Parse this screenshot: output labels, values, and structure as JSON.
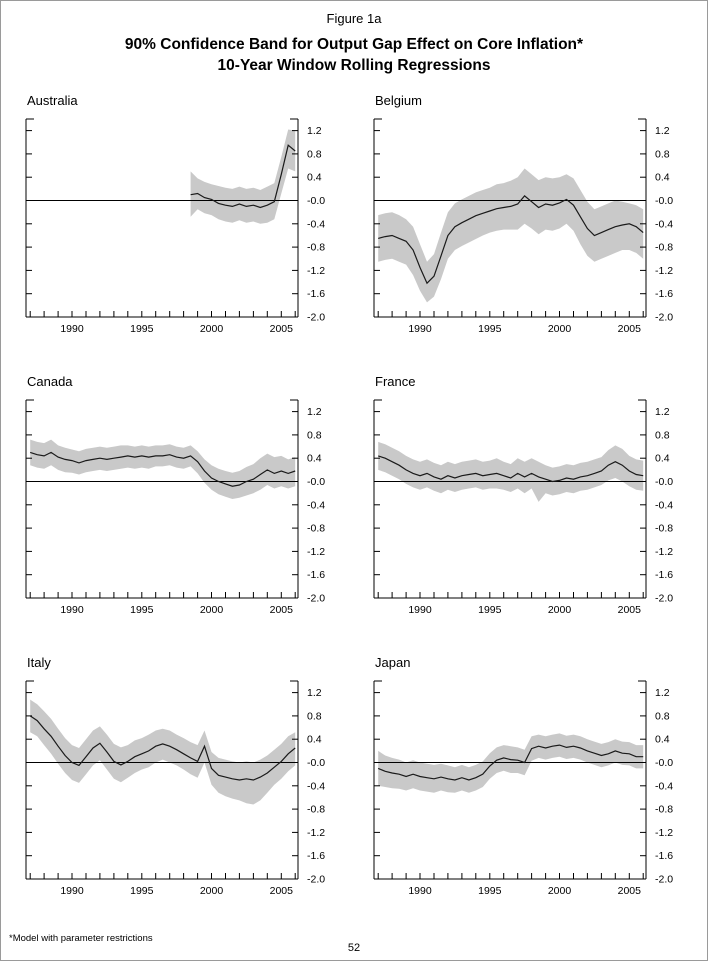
{
  "page": {
    "figure_label": "Figure 1a",
    "title_line1": "90% Confidence Band for Output Gap Effect on Core Inflation*",
    "title_line2": "10-Year Window Rolling Regressions",
    "footnote": "*Model with parameter restrictions",
    "page_number": "52"
  },
  "colors": {
    "band": "#c9c9c9",
    "line": "#1a1a1a",
    "frame": "#000000",
    "text": "#000000"
  },
  "axes": {
    "y_tick_labels": [
      "1.2",
      "0.8",
      "0.4",
      "-0.0",
      "-0.4",
      "-0.8",
      "-1.2",
      "-1.6",
      "-2.0"
    ],
    "y_tick_values": [
      1.2,
      0.8,
      0.4,
      0.0,
      -0.4,
      -0.8,
      -1.2,
      -1.6,
      -2.0
    ],
    "x_tick_labels": [
      "1990",
      "1995",
      "2000",
      "2005"
    ],
    "x_tick_values": [
      1990,
      1995,
      2000,
      2005
    ],
    "x_minor_start": 1987,
    "x_minor_end": 2006,
    "xlim": [
      1986.7,
      2006.2
    ],
    "ylim": [
      -2.0,
      1.4
    ]
  },
  "chart_data": [
    {
      "type": "line",
      "country": "Australia",
      "x_start": 1998.5,
      "x_step": 0.5,
      "estimate": [
        0.1,
        0.12,
        0.05,
        0.02,
        -0.05,
        -0.08,
        -0.1,
        -0.06,
        -0.1,
        -0.08,
        -0.12,
        -0.08,
        -0.02,
        0.45,
        0.95,
        0.85
      ],
      "band_upper": [
        0.5,
        0.38,
        0.32,
        0.28,
        0.25,
        0.22,
        0.2,
        0.24,
        0.2,
        0.22,
        0.18,
        0.24,
        0.3,
        0.75,
        1.22,
        1.2
      ],
      "band_lower": [
        -0.28,
        -0.15,
        -0.22,
        -0.25,
        -0.32,
        -0.36,
        -0.38,
        -0.34,
        -0.38,
        -0.36,
        -0.4,
        -0.38,
        -0.32,
        0.12,
        0.55,
        0.5
      ],
      "ylim": [
        -2.0,
        1.2
      ]
    },
    {
      "type": "line",
      "country": "Belgium",
      "x_start": 1987,
      "x_step": 0.5,
      "estimate": [
        -0.65,
        -0.62,
        -0.6,
        -0.65,
        -0.7,
        -0.85,
        -1.15,
        -1.42,
        -1.3,
        -0.95,
        -0.6,
        -0.45,
        -0.38,
        -0.32,
        -0.26,
        -0.22,
        -0.18,
        -0.14,
        -0.12,
        -0.1,
        -0.06,
        0.08,
        -0.02,
        -0.12,
        -0.06,
        -0.08,
        -0.04,
        0.02,
        -0.08,
        -0.28,
        -0.48,
        -0.6,
        -0.55,
        -0.5,
        -0.45,
        -0.42,
        -0.4,
        -0.45,
        -0.55
      ],
      "band_upper": [
        -0.25,
        -0.22,
        -0.2,
        -0.25,
        -0.32,
        -0.45,
        -0.75,
        -1.05,
        -0.92,
        -0.55,
        -0.2,
        -0.05,
        0.02,
        0.08,
        0.14,
        0.18,
        0.22,
        0.28,
        0.3,
        0.34,
        0.4,
        0.55,
        0.45,
        0.35,
        0.4,
        0.38,
        0.4,
        0.45,
        0.38,
        0.18,
        -0.02,
        -0.15,
        -0.1,
        -0.05,
        0.0,
        -0.02,
        -0.05,
        -0.08,
        -0.15
      ],
      "band_lower": [
        -1.05,
        -1.02,
        -1.0,
        -1.05,
        -1.1,
        -1.28,
        -1.55,
        -1.75,
        -1.65,
        -1.35,
        -1.0,
        -0.85,
        -0.78,
        -0.72,
        -0.66,
        -0.6,
        -0.55,
        -0.52,
        -0.5,
        -0.5,
        -0.5,
        -0.4,
        -0.48,
        -0.58,
        -0.5,
        -0.52,
        -0.48,
        -0.4,
        -0.52,
        -0.75,
        -0.95,
        -1.05,
        -1.0,
        -0.95,
        -0.9,
        -0.85,
        -0.85,
        -0.9,
        -1.0
      ],
      "ylim": [
        -2.0,
        1.2
      ]
    },
    {
      "type": "line",
      "country": "Canada",
      "x_start": 1987,
      "x_step": 0.5,
      "estimate": [
        0.5,
        0.46,
        0.44,
        0.5,
        0.42,
        0.38,
        0.36,
        0.32,
        0.36,
        0.38,
        0.4,
        0.38,
        0.4,
        0.42,
        0.44,
        0.42,
        0.44,
        0.42,
        0.44,
        0.44,
        0.46,
        0.42,
        0.4,
        0.44,
        0.34,
        0.18,
        0.06,
        0.0,
        -0.04,
        -0.08,
        -0.06,
        0.0,
        0.04,
        0.12,
        0.2,
        0.14,
        0.18,
        0.14,
        0.18
      ],
      "band_upper": [
        0.72,
        0.68,
        0.66,
        0.72,
        0.62,
        0.58,
        0.55,
        0.52,
        0.56,
        0.58,
        0.6,
        0.58,
        0.6,
        0.62,
        0.62,
        0.6,
        0.62,
        0.6,
        0.62,
        0.62,
        0.64,
        0.6,
        0.58,
        0.62,
        0.52,
        0.38,
        0.28,
        0.22,
        0.18,
        0.15,
        0.18,
        0.25,
        0.3,
        0.4,
        0.48,
        0.42,
        0.44,
        0.38,
        0.42
      ],
      "band_lower": [
        0.28,
        0.24,
        0.22,
        0.28,
        0.2,
        0.16,
        0.15,
        0.12,
        0.16,
        0.18,
        0.2,
        0.18,
        0.2,
        0.22,
        0.24,
        0.22,
        0.24,
        0.22,
        0.26,
        0.26,
        0.28,
        0.24,
        0.22,
        0.26,
        0.14,
        -0.02,
        -0.14,
        -0.22,
        -0.26,
        -0.3,
        -0.28,
        -0.24,
        -0.2,
        -0.14,
        -0.06,
        -0.12,
        -0.08,
        -0.12,
        -0.08
      ],
      "ylim": [
        -2.0,
        1.2
      ]
    },
    {
      "type": "line",
      "country": "France",
      "x_start": 1987,
      "x_step": 0.5,
      "estimate": [
        0.44,
        0.4,
        0.34,
        0.28,
        0.2,
        0.14,
        0.1,
        0.14,
        0.08,
        0.04,
        0.1,
        0.06,
        0.1,
        0.12,
        0.14,
        0.1,
        0.12,
        0.14,
        0.1,
        0.06,
        0.14,
        0.08,
        0.14,
        0.08,
        0.04,
        0.0,
        0.02,
        0.06,
        0.04,
        0.08,
        0.1,
        0.14,
        0.18,
        0.28,
        0.34,
        0.28,
        0.18,
        0.12,
        0.1
      ],
      "band_upper": [
        0.68,
        0.64,
        0.58,
        0.52,
        0.44,
        0.38,
        0.34,
        0.38,
        0.32,
        0.28,
        0.34,
        0.3,
        0.34,
        0.36,
        0.38,
        0.34,
        0.36,
        0.4,
        0.34,
        0.3,
        0.4,
        0.34,
        0.4,
        0.34,
        0.28,
        0.24,
        0.26,
        0.3,
        0.28,
        0.32,
        0.34,
        0.38,
        0.42,
        0.54,
        0.62,
        0.56,
        0.44,
        0.38,
        0.36
      ],
      "band_lower": [
        0.2,
        0.16,
        0.1,
        0.04,
        -0.04,
        -0.1,
        -0.14,
        -0.1,
        -0.16,
        -0.2,
        -0.14,
        -0.18,
        -0.14,
        -0.12,
        -0.1,
        -0.14,
        -0.12,
        -0.12,
        -0.14,
        -0.18,
        -0.12,
        -0.2,
        -0.12,
        -0.35,
        -0.2,
        -0.24,
        -0.22,
        -0.18,
        -0.2,
        -0.16,
        -0.14,
        -0.1,
        -0.06,
        0.02,
        0.06,
        0.0,
        -0.08,
        -0.14,
        -0.16
      ],
      "ylim": [
        -2.0,
        1.2
      ]
    },
    {
      "type": "line",
      "country": "Italy",
      "x_start": 1987,
      "x_step": 0.5,
      "estimate": [
        0.8,
        0.72,
        0.58,
        0.45,
        0.28,
        0.12,
        0.0,
        -0.05,
        0.1,
        0.25,
        0.33,
        0.18,
        0.02,
        -0.04,
        0.02,
        0.1,
        0.15,
        0.2,
        0.28,
        0.32,
        0.28,
        0.22,
        0.15,
        0.08,
        0.02,
        0.28,
        -0.1,
        -0.22,
        -0.25,
        -0.28,
        -0.3,
        -0.28,
        -0.3,
        -0.25,
        -0.18,
        -0.08,
        0.02,
        0.15,
        0.25
      ],
      "band_upper": [
        1.08,
        1.0,
        0.88,
        0.75,
        0.58,
        0.42,
        0.3,
        0.25,
        0.4,
        0.55,
        0.62,
        0.48,
        0.32,
        0.26,
        0.3,
        0.38,
        0.42,
        0.48,
        0.55,
        0.58,
        0.55,
        0.48,
        0.42,
        0.35,
        0.3,
        0.55,
        0.18,
        0.08,
        0.05,
        0.02,
        0.0,
        0.02,
        0.0,
        0.05,
        0.12,
        0.22,
        0.32,
        0.45,
        0.52
      ],
      "band_lower": [
        0.52,
        0.45,
        0.3,
        0.15,
        -0.02,
        -0.18,
        -0.3,
        -0.35,
        -0.2,
        -0.05,
        0.04,
        -0.12,
        -0.28,
        -0.34,
        -0.26,
        -0.18,
        -0.12,
        -0.08,
        0.0,
        0.05,
        0.0,
        -0.05,
        -0.12,
        -0.2,
        -0.26,
        0.0,
        -0.38,
        -0.52,
        -0.58,
        -0.62,
        -0.65,
        -0.7,
        -0.72,
        -0.65,
        -0.52,
        -0.38,
        -0.28,
        -0.15,
        -0.05
      ],
      "ylim": [
        -2.0,
        1.2
      ]
    },
    {
      "type": "line",
      "country": "Japan",
      "x_start": 1987,
      "x_step": 0.5,
      "estimate": [
        -0.1,
        -0.15,
        -0.18,
        -0.2,
        -0.24,
        -0.2,
        -0.24,
        -0.26,
        -0.28,
        -0.25,
        -0.28,
        -0.3,
        -0.26,
        -0.3,
        -0.26,
        -0.2,
        -0.06,
        0.04,
        0.08,
        0.05,
        0.04,
        0.0,
        0.24,
        0.28,
        0.25,
        0.28,
        0.3,
        0.26,
        0.28,
        0.25,
        0.2,
        0.16,
        0.12,
        0.15,
        0.2,
        0.16,
        0.15,
        0.1,
        0.1
      ],
      "band_upper": [
        0.2,
        0.12,
        0.08,
        0.05,
        0.0,
        0.04,
        0.0,
        -0.02,
        -0.04,
        -0.02,
        -0.05,
        -0.08,
        -0.04,
        -0.08,
        -0.04,
        0.02,
        0.16,
        0.26,
        0.3,
        0.28,
        0.26,
        0.22,
        0.45,
        0.48,
        0.45,
        0.48,
        0.5,
        0.46,
        0.48,
        0.45,
        0.4,
        0.36,
        0.32,
        0.35,
        0.4,
        0.36,
        0.35,
        0.3,
        0.3
      ],
      "band_lower": [
        -0.4,
        -0.42,
        -0.44,
        -0.45,
        -0.48,
        -0.44,
        -0.48,
        -0.5,
        -0.52,
        -0.48,
        -0.51,
        -0.52,
        -0.48,
        -0.52,
        -0.48,
        -0.42,
        -0.28,
        -0.18,
        -0.14,
        -0.18,
        -0.18,
        -0.22,
        0.03,
        0.08,
        0.05,
        0.08,
        0.1,
        0.06,
        0.08,
        0.05,
        0.0,
        -0.04,
        -0.08,
        -0.05,
        0.0,
        -0.04,
        -0.05,
        -0.1,
        -0.1
      ],
      "ylim": [
        -2.0,
        1.2
      ]
    }
  ]
}
